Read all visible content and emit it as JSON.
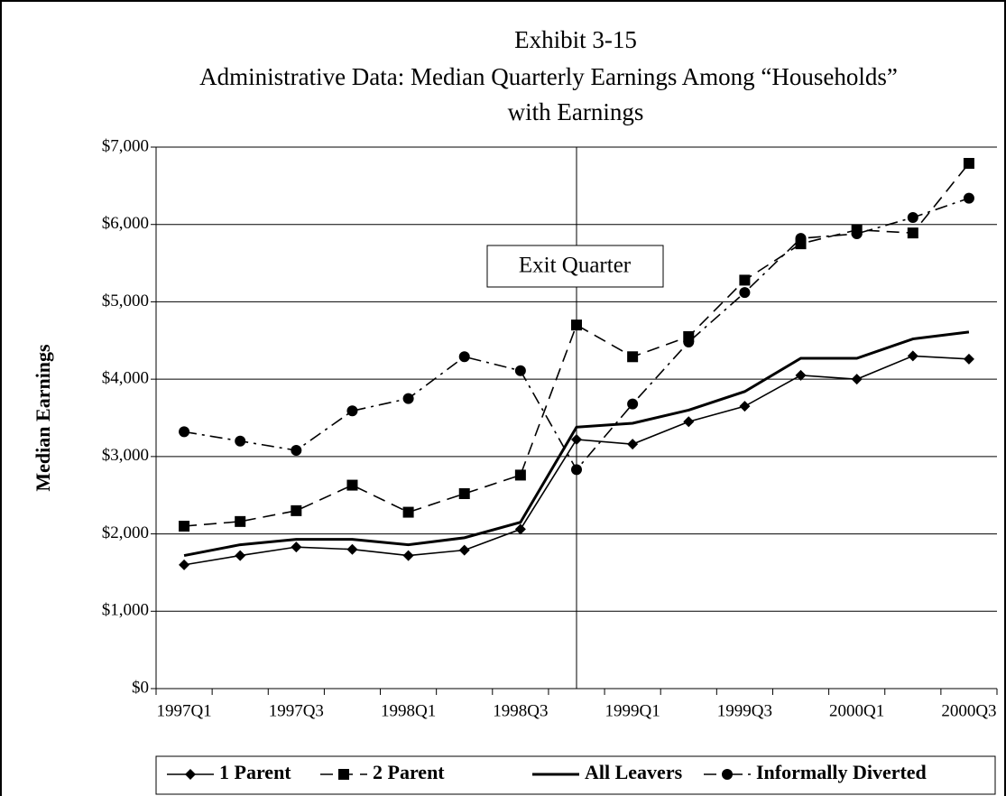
{
  "chart_data": {
    "type": "line",
    "title": [
      "Exhibit 3-15",
      "Administrative Data: Median Quarterly Earnings Among “Households”",
      "with Earnings"
    ],
    "y_label": "Median Earnings",
    "annotation": "Exit Quarter",
    "categories": [
      "1997Q1",
      null,
      "1997Q3",
      null,
      "1998Q1",
      null,
      "1998Q3",
      null,
      "1999Q1",
      null,
      "1999Q3",
      null,
      "2000Q1",
      null,
      "2000Q3"
    ],
    "series": [
      {
        "name": "1 Parent",
        "color": "#000000",
        "marker": "diamond",
        "line_style": "solid",
        "values": [
          1600,
          1720,
          1830,
          1800,
          1720,
          1790,
          2060,
          3220,
          3160,
          3450,
          3650,
          4050,
          4000,
          4300,
          4260
        ]
      },
      {
        "name": "2 Parent",
        "color": "#000000",
        "marker": "square",
        "line_style": "dashed",
        "values": [
          2100,
          2160,
          2300,
          2630,
          2280,
          2520,
          2760,
          4700,
          4290,
          4550,
          5280,
          5750,
          5930,
          5890,
          6790
        ]
      },
      {
        "name": "All Leavers",
        "color": "#000000",
        "marker": "none",
        "line_style": "thick",
        "values": [
          1720,
          1860,
          1930,
          1930,
          1860,
          1950,
          2150,
          3380,
          3430,
          3600,
          3840,
          4270,
          4270,
          4520,
          4610
        ]
      },
      {
        "name": "Informally Diverted",
        "color": "#000000",
        "marker": "circle",
        "line_style": "dashdot",
        "values": [
          3320,
          3200,
          3080,
          3590,
          3750,
          4290,
          4110,
          2830,
          3680,
          4480,
          5120,
          5820,
          5880,
          6090,
          6340
        ]
      }
    ],
    "ylim": [
      0,
      7000
    ],
    "yticks": [
      {
        "value": 0,
        "label": "$0"
      },
      {
        "value": 1000,
        "label": "$1,000"
      },
      {
        "value": 2000,
        "label": "$2,000"
      },
      {
        "value": 3000,
        "label": "$3,000"
      },
      {
        "value": 4000,
        "label": "$4,000"
      },
      {
        "value": 5000,
        "label": "$5,000"
      },
      {
        "value": 6000,
        "label": "$6,000"
      },
      {
        "value": 7000,
        "label": "$7,000"
      }
    ],
    "grid": true,
    "legend": "bottom"
  }
}
